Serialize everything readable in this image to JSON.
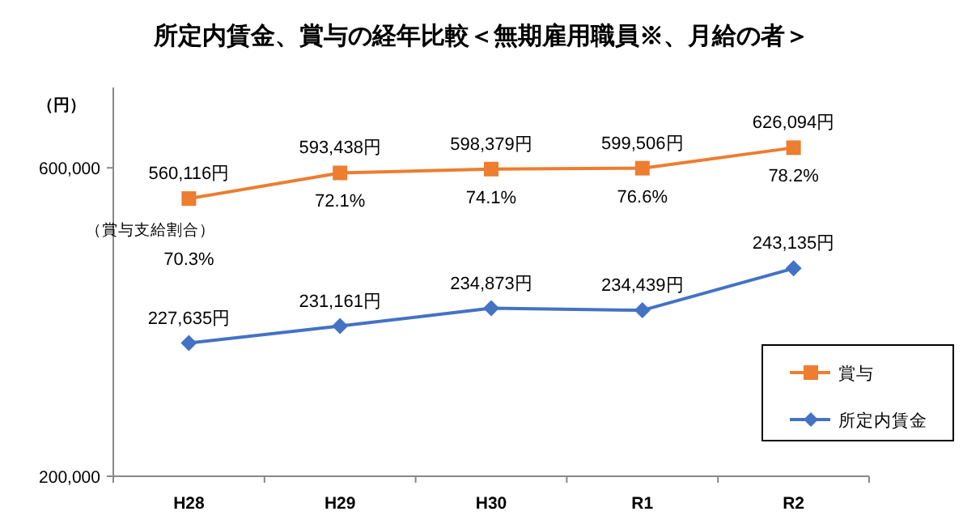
{
  "chart_data": {
    "type": "line",
    "title": "所定内賃金、賞与の経年比較＜無期雇用職員※、月給の者＞",
    "ylabel": "（円）",
    "categories": [
      "H28",
      "H29",
      "H30",
      "R1",
      "R2"
    ],
    "series": [
      {
        "name": "賞与",
        "color": "#ed7d31",
        "marker": "square",
        "values": [
          560116,
          593438,
          598379,
          599506,
          626094
        ],
        "value_labels": [
          "560,116円",
          "593,438円",
          "598,379円",
          "599,506円",
          "626,094円"
        ]
      },
      {
        "name": "所定内賃金",
        "color": "#4472c4",
        "marker": "diamond",
        "axis": "y2",
        "values": [
          227635,
          231161,
          234873,
          234439,
          243135
        ],
        "value_labels": [
          "227,635円",
          "231,161円",
          "234,873円",
          "234,439円",
          "243,135円"
        ]
      }
    ],
    "ylim": [
      200000,
      700000
    ],
    "yticks": [
      {
        "value": 200000,
        "label": "200,000"
      },
      {
        "value": 600000,
        "label": "600,000"
      }
    ],
    "y2lim": [
      200000,
      280000
    ],
    "annotations": [
      "（賞与支給割合）",
      "70.3%",
      "72.1%",
      "74.1%",
      "76.6%",
      "78.2%"
    ],
    "grid": false,
    "legend": "right",
    "line_style": "solid"
  }
}
